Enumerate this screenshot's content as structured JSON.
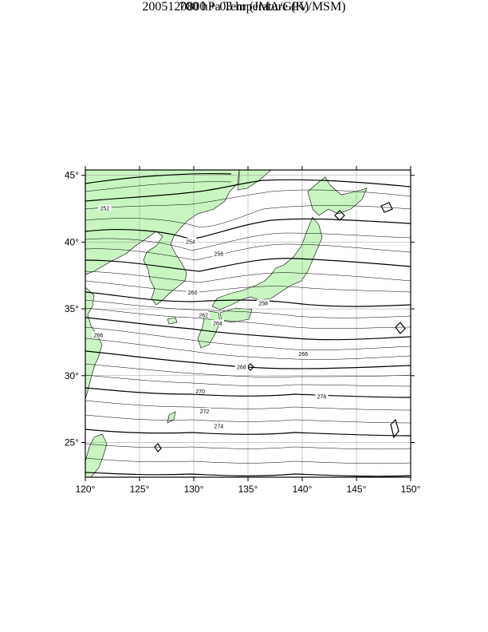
{
  "title": "700 hPa Temperature (K)",
  "subtitle": "2005120800 + 03 hr (JMA/GPV/MSM)",
  "colors": {
    "land": "#c8f5c0",
    "contour": "#000000",
    "grid": "#999999"
  },
  "map": {
    "lon_range": [
      120,
      150
    ],
    "lat_range": [
      22.4,
      45.4
    ],
    "lon_ticks": [
      {
        "value": 120,
        "label": "120°"
      },
      {
        "value": 125,
        "label": "125°"
      },
      {
        "value": 130,
        "label": "130°"
      },
      {
        "value": 135,
        "label": "135°"
      },
      {
        "value": 140,
        "label": "140°"
      },
      {
        "value": 145,
        "label": "145°"
      },
      {
        "value": 150,
        "label": "150°"
      }
    ],
    "lat_ticks": [
      {
        "value": 25,
        "label": "25°"
      },
      {
        "value": 30,
        "label": "30°"
      },
      {
        "value": 35,
        "label": "35°"
      },
      {
        "value": 40,
        "label": "40°"
      },
      {
        "value": 45,
        "label": "45°"
      }
    ],
    "contour_labels": [
      {
        "text": "252",
        "lon": 121.8,
        "lat": 42.5
      },
      {
        "text": "254",
        "lon": 129.7,
        "lat": 40.0
      },
      {
        "text": "256",
        "lon": 132.3,
        "lat": 39.1
      },
      {
        "text": "258",
        "lon": 136.4,
        "lat": 35.4
      },
      {
        "text": "260",
        "lon": 129.9,
        "lat": 36.2
      },
      {
        "text": "262",
        "lon": 130.9,
        "lat": 34.5
      },
      {
        "text": "264",
        "lon": 132.2,
        "lat": 33.9
      },
      {
        "text": "266",
        "lon": 121.2,
        "lat": 33.0
      },
      {
        "text": "266",
        "lon": 140.1,
        "lat": 31.6
      },
      {
        "text": "268",
        "lon": 134.4,
        "lat": 30.6
      },
      {
        "text": "270",
        "lon": 130.6,
        "lat": 28.8
      },
      {
        "text": "272",
        "lon": 131.0,
        "lat": 27.3
      },
      {
        "text": "274",
        "lon": 132.3,
        "lat": 26.2
      },
      {
        "text": "276",
        "lon": 141.8,
        "lat": 28.4
      }
    ]
  }
}
